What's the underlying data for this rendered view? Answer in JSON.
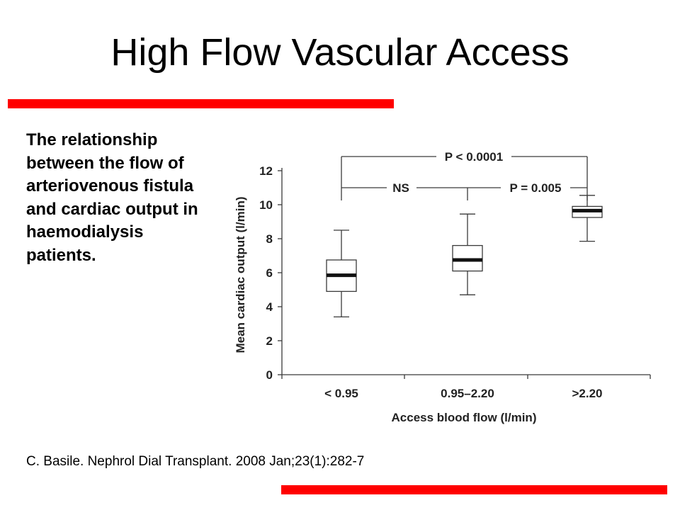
{
  "slide": {
    "title": "High Flow Vascular Access",
    "description": "The relationship between the flow of arteriovenous fistula and cardiac output in haemodialysis patients.",
    "citation": "C. Basile. Nephrol Dial Transplant. 2008 Jan;23(1):282-7",
    "accent_color": "#ff0000"
  },
  "chart_data": {
    "type": "box",
    "xlabel": "Access blood flow (l/min)",
    "ylabel": "Mean cardiac output (l/min)",
    "ylim": [
      0,
      12
    ],
    "yticks": [
      "0",
      "2",
      "4",
      "6",
      "8",
      "10",
      "12"
    ],
    "categories": [
      "< 0.95",
      "0.95–2.20",
      ">2.20"
    ],
    "boxes": [
      {
        "category": "< 0.95",
        "min": 3.4,
        "q1": 4.9,
        "median": 5.85,
        "q3": 6.75,
        "max": 8.5
      },
      {
        "category": "0.95–2.20",
        "min": 4.7,
        "q1": 6.1,
        "median": 6.75,
        "q3": 7.6,
        "max": 9.45
      },
      {
        "category": ">2.20",
        "min": 7.85,
        "q1": 9.25,
        "median": 9.65,
        "q3": 9.9,
        "max": 10.55
      }
    ],
    "comparisons": [
      {
        "label": "P < 0.0001",
        "from": "< 0.95",
        "to": ">2.20"
      },
      {
        "label": "NS",
        "from": "< 0.95",
        "to": "0.95–2.20"
      },
      {
        "label": "P = 0.005",
        "from": "0.95–2.20",
        "to": ">2.20"
      }
    ]
  }
}
